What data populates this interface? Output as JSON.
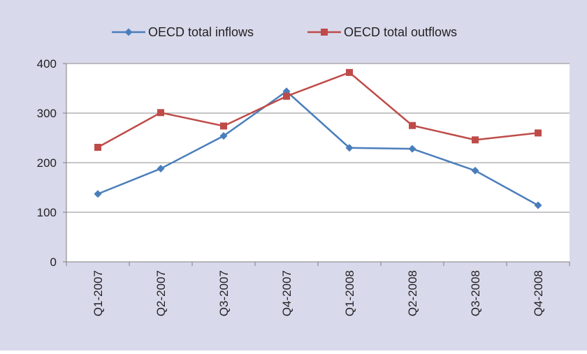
{
  "chart_data": {
    "type": "line",
    "categories": [
      "Q1-2007",
      "Q2-2007",
      "Q3-2007",
      "Q4-2007",
      "Q1-2008",
      "Q2-2008",
      "Q3-2008",
      "Q4-2008"
    ],
    "series": [
      {
        "name": "OECD total inflows",
        "values": [
          137,
          188,
          254,
          344,
          230,
          228,
          184,
          114
        ],
        "color": "#4a7ebb",
        "marker": "diamond"
      },
      {
        "name": "OECD total outflows",
        "values": [
          231,
          301,
          274,
          334,
          382,
          275,
          246,
          260
        ],
        "color": "#be4b48",
        "marker": "square"
      }
    ],
    "ylim": [
      0,
      400
    ],
    "yticks": [
      0,
      100,
      200,
      300,
      400
    ],
    "grid": true,
    "legend": "top",
    "background_color": "#d9d9ec",
    "plot_background_color": "#ffffff"
  }
}
